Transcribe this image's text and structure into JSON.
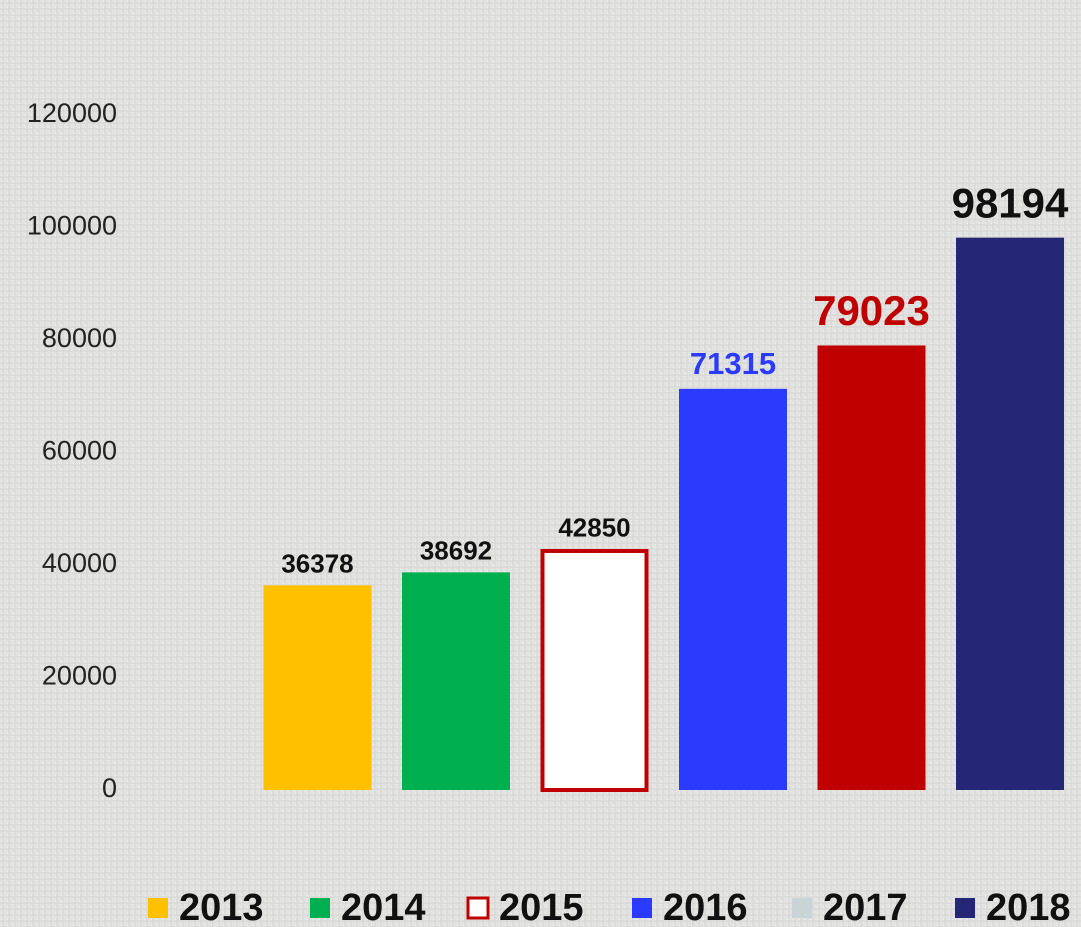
{
  "chart_data": {
    "type": "bar",
    "ylim": [
      0,
      120000
    ],
    "yticks": [
      0,
      20000,
      40000,
      60000,
      80000,
      100000,
      120000
    ],
    "grid": false,
    "legend": "bottom",
    "series": [
      {
        "name": "2013",
        "color": "#ffc000",
        "legend_color": "#ffc000",
        "label_color": "#111111",
        "values": [
          36378
        ]
      },
      {
        "name": "2014",
        "color": "#00b050",
        "legend_color": "#00b050",
        "label_color": "#111111",
        "values": [
          38692
        ]
      },
      {
        "name": "2015",
        "color": "#ffffff",
        "outline": "#c00000",
        "legend_color": "#ffffff",
        "label_color": "#111111",
        "values": [
          42850
        ]
      },
      {
        "name": "2016",
        "color": "#2a3bff",
        "legend_color": "#2a3bff",
        "label_color": "#2a3bff",
        "values": [
          71315
        ]
      },
      {
        "name": "2017",
        "color": "#c00000",
        "legend_color": "#c8d4d6",
        "label_color": "#c00000",
        "values": [
          79023
        ]
      },
      {
        "name": "2018",
        "color": "#262677",
        "legend_color": "#262677",
        "label_color": "#111111",
        "values": [
          98194
        ]
      }
    ]
  }
}
